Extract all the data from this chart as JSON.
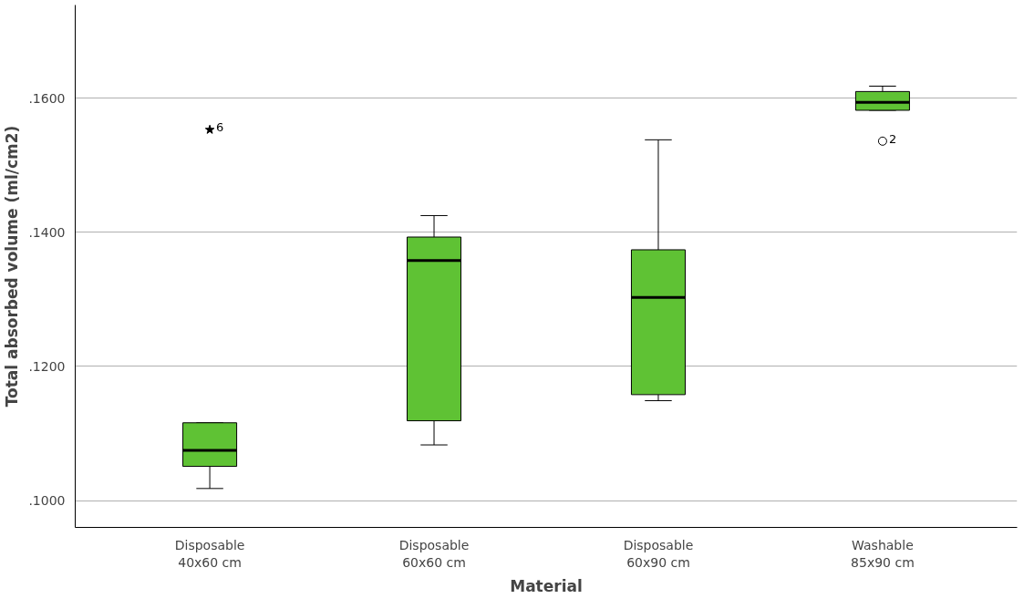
{
  "chart_data": {
    "type": "box",
    "xlabel": "Material",
    "ylabel": "Total absorbed volume (ml/cm2)",
    "categories": [
      "Disposable\n40x60 cm",
      "Disposable\n60x60 cm",
      "Disposable\n60x90 cm",
      "Washable\n85x90 cm"
    ],
    "color": "#5fc234",
    "boxes": [
      {
        "low": 0.1018,
        "q1": 0.1051,
        "median": 0.1075,
        "q3": 0.1116,
        "high": 0.1116
      },
      {
        "low": 0.1083,
        "q1": 0.1119,
        "median": 0.1358,
        "q3": 0.1393,
        "high": 0.1425
      },
      {
        "low": 0.1149,
        "q1": 0.1158,
        "median": 0.1303,
        "q3": 0.1374,
        "high": 0.1538
      },
      {
        "low": 0.1582,
        "q1": 0.1582,
        "median": 0.1594,
        "q3": 0.161,
        "high": 0.1618
      }
    ],
    "series": [
      {
        "type": "scatter",
        "marker": "star",
        "color": "#000000",
        "x": [
          "Disposable\n40x60 cm"
        ],
        "values": [
          0.1553
        ]
      },
      {
        "type": "scatter",
        "marker": "circle",
        "color": "#000000",
        "x": [
          "Washable\n85x90 cm"
        ],
        "values": [
          0.1536
        ]
      }
    ],
    "annotations": [
      {
        "text": "6",
        "x": "Disposable\n40x60 cm",
        "y": 0.1553
      },
      {
        "text": "2",
        "x": "Washable\n85x90 cm",
        "y": 0.1536
      }
    ],
    "ylim": [
      0.096,
      0.1739
    ],
    "yticks": [
      {
        "value": 0.1,
        "label": ".1000"
      },
      {
        "value": 0.12,
        "label": ".1200"
      },
      {
        "value": 0.14,
        "label": ".1400"
      },
      {
        "value": 0.16,
        "label": ".1600"
      }
    ],
    "grid": "y"
  }
}
